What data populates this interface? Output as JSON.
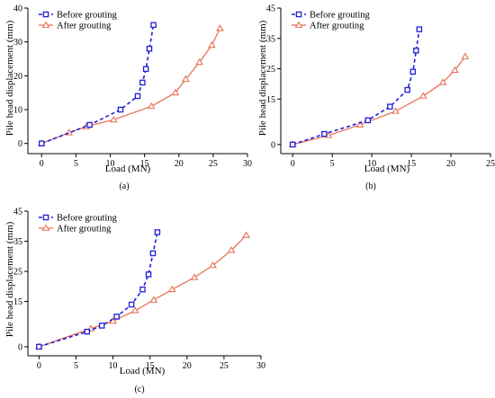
{
  "colors": {
    "before": "#1f1fd6",
    "after": "#e8735a",
    "axis": "#000000"
  },
  "legend": {
    "before": "Before grouting",
    "after": "After grouting"
  },
  "chart_data": [
    {
      "type": "line",
      "panel_label": "(a)",
      "xlabel": "Load (MN)",
      "ylabel": "Pile head displacement (mm)",
      "xlim": [
        -2,
        30
      ],
      "ylim": [
        -3,
        40
      ],
      "xticks": [
        0,
        5,
        10,
        15,
        20,
        25,
        30
      ],
      "yticks": [
        0,
        10,
        20,
        30,
        40
      ],
      "series": [
        {
          "name": "Before grouting",
          "marker": "square",
          "style": "dashed",
          "x": [
            0,
            7,
            11.5,
            14,
            14.7,
            15.2,
            15.7,
            16.3
          ],
          "y": [
            0,
            5.5,
            10,
            14,
            18,
            22,
            28,
            35
          ]
        },
        {
          "name": "After grouting",
          "marker": "triangle",
          "style": "solid",
          "x": [
            0,
            4,
            6.5,
            10.5,
            16,
            19.5,
            21,
            23,
            24.8,
            26
          ],
          "y": [
            0,
            3.2,
            5,
            7,
            11,
            15,
            19,
            24,
            29,
            34
          ]
        }
      ]
    },
    {
      "type": "line",
      "panel_label": "(b)",
      "xlabel": "Load (MN)",
      "ylabel": "Pile head displacement (mm)",
      "xlim": [
        -1.5,
        25
      ],
      "ylim": [
        -3,
        45
      ],
      "xticks": [
        0,
        5,
        10,
        15,
        20,
        25
      ],
      "yticks": [
        0,
        15,
        25,
        35,
        45
      ],
      "series": [
        {
          "name": "Before grouting",
          "marker": "square",
          "style": "dashed",
          "x": [
            0,
            4,
            9.5,
            12.3,
            14.5,
            15.2,
            15.6,
            16
          ],
          "y": [
            0,
            3.5,
            8,
            12.5,
            18,
            24,
            31,
            38
          ]
        },
        {
          "name": "After grouting",
          "marker": "triangle",
          "style": "solid",
          "x": [
            0,
            4.5,
            8.5,
            13,
            16.5,
            19,
            20.5,
            21.8
          ],
          "y": [
            0,
            3,
            6.5,
            11,
            16,
            20.5,
            24.5,
            29
          ]
        }
      ]
    },
    {
      "type": "line",
      "panel_label": "(c)",
      "xlabel": "Load (MN)",
      "ylabel": "Pile head displacement (mm)",
      "xlim": [
        -1.5,
        30
      ],
      "ylim": [
        -3,
        45
      ],
      "xticks": [
        0,
        5,
        10,
        15,
        20,
        25,
        30
      ],
      "yticks": [
        0,
        15,
        25,
        35,
        45
      ],
      "series": [
        {
          "name": "Before grouting",
          "marker": "square",
          "style": "dashed",
          "x": [
            0,
            6.5,
            8.5,
            10.5,
            12.5,
            14,
            14.8,
            15.4,
            16
          ],
          "y": [
            0,
            5,
            7,
            10,
            14,
            19,
            24,
            31,
            38
          ]
        },
        {
          "name": "After grouting",
          "marker": "triangle",
          "style": "solid",
          "x": [
            0,
            7,
            10,
            13,
            15.5,
            18,
            21,
            23.5,
            26,
            28
          ],
          "y": [
            0,
            6,
            8.5,
            12,
            15.5,
            19,
            23,
            27,
            32,
            37
          ]
        }
      ]
    }
  ]
}
